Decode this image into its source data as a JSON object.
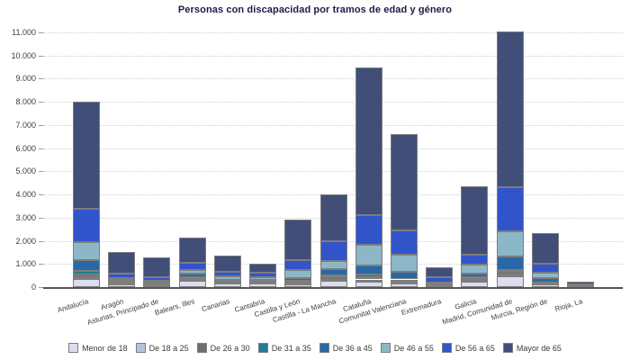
{
  "chart_data": {
    "type": "bar",
    "variant": "stacked-vertical",
    "title": "Personas con discapacidad por tramos de edad y género",
    "xlabel": "",
    "ylabel": "",
    "ylim": [
      0,
      11000
    ],
    "ytick_step": 1000,
    "y_tick_labels": [
      "0",
      "1.000",
      "2.000",
      "3.000",
      "4.000",
      "5.000",
      "6.000",
      "7.000",
      "8.000",
      "9.000",
      "10.000",
      "11.000"
    ],
    "grid": "horizontal-dotted",
    "legend_position": "bottom",
    "categories": [
      "Andalucía",
      "Aragón",
      "Asturias, Principado de",
      "Balears, Illes",
      "Canarias",
      "Cantabria",
      "Castilla y León",
      "Castilla - La Mancha",
      "Cataluña",
      "Comunitat Valenciana",
      "Extremadura",
      "Galicia",
      "Madrid, Comunidad de",
      "Murcia, Región de",
      "Rioja, La"
    ],
    "series": [
      {
        "name": "Menor de 18",
        "color": "#dcdeef",
        "values": [
          350,
          130,
          60,
          260,
          140,
          160,
          115,
          260,
          250,
          145,
          25,
          215,
          455,
          100,
          10
        ]
      },
      {
        "name": "De 18 a 25",
        "color": "#b3c3dd",
        "values": [
          80,
          30,
          25,
          60,
          30,
          30,
          30,
          65,
          80,
          50,
          10,
          45,
          100,
          28,
          5
        ]
      },
      {
        "name": "De 26 a 30",
        "color": "#6e6e6e",
        "values": [
          115,
          55,
          60,
          65,
          40,
          45,
          80,
          115,
          100,
          75,
          20,
          90,
          95,
          42,
          10
        ]
      },
      {
        "name": "De 31 a 35",
        "color": "#1e7e95",
        "values": [
          155,
          25,
          25,
          55,
          35,
          30,
          50,
          65,
          120,
          60,
          15,
          65,
          90,
          35,
          5
        ]
      },
      {
        "name": "De 36 a 45",
        "color": "#2769a6",
        "values": [
          450,
          60,
          50,
          130,
          75,
          60,
          130,
          255,
          400,
          320,
          40,
          155,
          580,
          170,
          15
        ]
      },
      {
        "name": "De 46 a 55",
        "color": "#8cb7c6",
        "values": [
          800,
          90,
          70,
          160,
          155,
          90,
          320,
          370,
          890,
          740,
          100,
          400,
          1080,
          260,
          20
        ]
      },
      {
        "name": "De 56 a 65",
        "color": "#3254cb",
        "values": [
          1450,
          210,
          150,
          330,
          195,
          195,
          435,
          870,
          1260,
          1060,
          230,
          420,
          1930,
          385,
          35
        ]
      },
      {
        "name": "Mayor de 65",
        "color": "#404e78",
        "values": [
          4600,
          900,
          840,
          1090,
          680,
          390,
          1740,
          2000,
          6400,
          4150,
          400,
          2960,
          6720,
          1310,
          130
        ]
      }
    ],
    "totals": [
      8000,
      1500,
      1280,
      2150,
      1350,
      1000,
      2900,
      4000,
      9500,
      6600,
      840,
      4350,
      11050,
      2330,
      230
    ]
  }
}
